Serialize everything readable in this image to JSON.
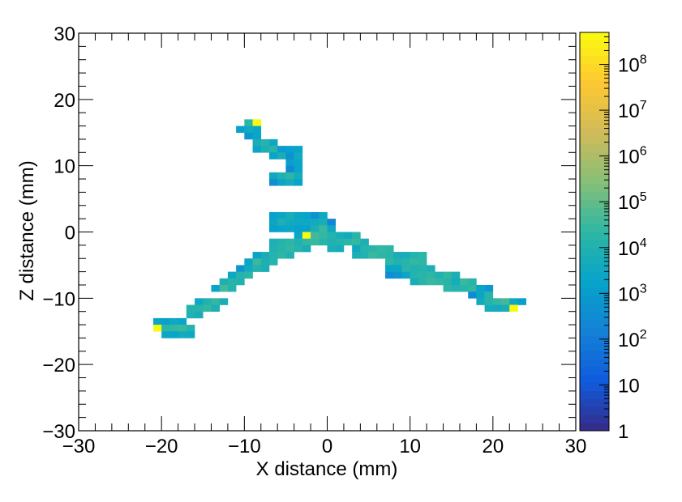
{
  "chart_data": {
    "type": "heatmap",
    "title": "",
    "xlabel": "X distance (mm)",
    "ylabel": "Z distance (mm)",
    "xlim": [
      -30,
      30
    ],
    "ylim": [
      -30,
      30
    ],
    "x_ticks": [
      -30,
      -20,
      -10,
      0,
      10,
      20,
      30
    ],
    "y_ticks": [
      -30,
      -20,
      -10,
      0,
      10,
      20,
      30
    ],
    "x_tick_labels": [
      "−30",
      "−20",
      "−10",
      "0",
      "10",
      "20",
      "30"
    ],
    "y_tick_labels": [
      "−30",
      "−20",
      "−10",
      "0",
      "10",
      "20",
      "30"
    ],
    "bin_width_mm": 1,
    "colorbar": {
      "scale": "log10",
      "range": [
        1,
        500000000
      ],
      "tick_values": [
        1,
        10,
        100,
        1000,
        10000,
        100000,
        1000000,
        10000000,
        100000000
      ],
      "tick_labels": [
        {
          "base": "1",
          "exp": ""
        },
        {
          "base": "10",
          "exp": ""
        },
        {
          "base": "10",
          "exp": "2"
        },
        {
          "base": "10",
          "exp": "3"
        },
        {
          "base": "10",
          "exp": "4"
        },
        {
          "base": "10",
          "exp": "5"
        },
        {
          "base": "10",
          "exp": "6"
        },
        {
          "base": "10",
          "exp": "7"
        },
        {
          "base": "10",
          "exp": "8"
        }
      ],
      "palette": [
        "#352a87",
        "#0f5cdd",
        "#1481d6",
        "#06a4ca",
        "#2eb7a4",
        "#87bf77",
        "#d1bb59",
        "#fec832",
        "#f9fb0e"
      ]
    },
    "cells": [
      [
        -10,
        16,
        4.3
      ],
      [
        -9,
        16,
        8.7
      ],
      [
        -11,
        15,
        3.2
      ],
      [
        -10,
        15,
        3.6
      ],
      [
        -9,
        15,
        3.4
      ],
      [
        -10,
        14,
        2.8
      ],
      [
        -9,
        14,
        3.3
      ],
      [
        -9,
        13,
        3.8
      ],
      [
        -8,
        13,
        4.1
      ],
      [
        -7,
        13,
        3.5
      ],
      [
        -9,
        12,
        3.4
      ],
      [
        -8,
        12,
        3.9
      ],
      [
        -7,
        12,
        4.2
      ],
      [
        -6,
        12,
        3.0
      ],
      [
        -5,
        12,
        3.2
      ],
      [
        -4,
        12,
        3.3
      ],
      [
        -7,
        11,
        3.3
      ],
      [
        -6,
        11,
        3.8
      ],
      [
        -5,
        11,
        2.7
      ],
      [
        -4,
        11,
        3.6
      ],
      [
        -5,
        10,
        3.1
      ],
      [
        -4,
        10,
        3.4
      ],
      [
        -5,
        9,
        2.4
      ],
      [
        -4,
        9,
        3.3
      ],
      [
        -7,
        8,
        3.5
      ],
      [
        -6,
        8,
        4.0
      ],
      [
        -5,
        8,
        4.3
      ],
      [
        -4,
        8,
        3.7
      ],
      [
        -7,
        7,
        2.6
      ],
      [
        -6,
        7,
        3.4
      ],
      [
        -5,
        7,
        3.7
      ],
      [
        -4,
        7,
        3.3
      ],
      [
        -7,
        2,
        3.2
      ],
      [
        -6,
        2,
        3.4
      ],
      [
        -5,
        2,
        3.8
      ],
      [
        -4,
        2,
        3.4
      ],
      [
        -3,
        2,
        3.3
      ],
      [
        -2,
        2,
        2.7
      ],
      [
        -1,
        2,
        3.5
      ],
      [
        -7,
        1,
        3.4
      ],
      [
        -6,
        1,
        3.9
      ],
      [
        -5,
        1,
        3.6
      ],
      [
        -4,
        1,
        3.5
      ],
      [
        -3,
        1,
        3.5
      ],
      [
        -2,
        1,
        3.6
      ],
      [
        -1,
        1,
        3.8
      ],
      [
        0,
        1,
        2.3
      ],
      [
        -7,
        0,
        3.2
      ],
      [
        -6,
        0,
        3.3
      ],
      [
        -5,
        0,
        3.4
      ],
      [
        -4,
        0,
        3.2
      ],
      [
        -3,
        0,
        3.2
      ],
      [
        -2,
        0,
        3.9
      ],
      [
        -1,
        0,
        4.5
      ],
      [
        0,
        0,
        3.5
      ],
      [
        -4,
        -1,
        3.4
      ],
      [
        -3,
        -1,
        8.9
      ],
      [
        -2,
        -1,
        4.6
      ],
      [
        -1,
        -1,
        4.4
      ],
      [
        0,
        -1,
        4.1
      ],
      [
        1,
        -1,
        3.8
      ],
      [
        2,
        -1,
        3.6
      ],
      [
        3,
        -1,
        4.2
      ],
      [
        -7,
        -2,
        3.9
      ],
      [
        -6,
        -2,
        4.1
      ],
      [
        -5,
        -2,
        4.3
      ],
      [
        -4,
        -2,
        4.0
      ],
      [
        -3,
        -2,
        4.4
      ],
      [
        -2,
        -2,
        4.5
      ],
      [
        -1,
        -2,
        4.2
      ],
      [
        0,
        -2,
        4.0
      ],
      [
        1,
        -2,
        4.1
      ],
      [
        2,
        -2,
        4.3
      ],
      [
        3,
        -2,
        4.4
      ],
      [
        4,
        -2,
        3.9
      ],
      [
        -7,
        -3,
        4.0
      ],
      [
        -6,
        -3,
        4.2
      ],
      [
        -5,
        -3,
        4.4
      ],
      [
        -4,
        -3,
        4.1
      ],
      [
        -3,
        -3,
        3.8
      ],
      [
        0,
        -3,
        3.9
      ],
      [
        1,
        -3,
        3.7
      ],
      [
        3,
        -3,
        3.5
      ],
      [
        4,
        -3,
        4.1
      ],
      [
        5,
        -3,
        4.2
      ],
      [
        6,
        -3,
        4.4
      ],
      [
        7,
        -3,
        4.3
      ],
      [
        -9,
        -4,
        3.3
      ],
      [
        -8,
        -4,
        3.8
      ],
      [
        -7,
        -4,
        4.1
      ],
      [
        -6,
        -4,
        4.3
      ],
      [
        -5,
        -4,
        4.0
      ],
      [
        3,
        -4,
        3.9
      ],
      [
        4,
        -4,
        4.0
      ],
      [
        5,
        -4,
        4.5
      ],
      [
        6,
        -4,
        4.3
      ],
      [
        7,
        -4,
        4.2
      ],
      [
        8,
        -4,
        3.8
      ],
      [
        9,
        -4,
        3.7
      ],
      [
        10,
        -4,
        4.1
      ],
      [
        11,
        -4,
        4.3
      ],
      [
        -10,
        -5,
        3.4
      ],
      [
        -9,
        -5,
        4.5
      ],
      [
        -8,
        -5,
        3.9
      ],
      [
        -7,
        -5,
        4.1
      ],
      [
        7,
        -5,
        4.3
      ],
      [
        8,
        -5,
        4.0
      ],
      [
        9,
        -5,
        4.2
      ],
      [
        10,
        -5,
        4.4
      ],
      [
        11,
        -5,
        4.3
      ],
      [
        -11,
        -6,
        2.8
      ],
      [
        -10,
        -6,
        3.6
      ],
      [
        -9,
        -6,
        4.1
      ],
      [
        -8,
        -6,
        3.9
      ],
      [
        7,
        -6,
        3.3
      ],
      [
        8,
        -6,
        3.4
      ],
      [
        9,
        -6,
        4.2
      ],
      [
        10,
        -6,
        4.0
      ],
      [
        11,
        -6,
        4.1
      ],
      [
        12,
        -6,
        3.9
      ],
      [
        -12,
        -7,
        3.5
      ],
      [
        -11,
        -7,
        4.1
      ],
      [
        -10,
        -7,
        4.3
      ],
      [
        7,
        -7,
        2.6
      ],
      [
        8,
        -7,
        2.8
      ],
      [
        9,
        -7,
        3.4
      ],
      [
        10,
        -7,
        4.1
      ],
      [
        11,
        -7,
        4.2
      ],
      [
        12,
        -7,
        4.3
      ],
      [
        13,
        -7,
        4.0
      ],
      [
        14,
        -7,
        4.4
      ],
      [
        15,
        -7,
        3.9
      ],
      [
        -13,
        -8,
        3.9
      ],
      [
        -12,
        -8,
        4.2
      ],
      [
        -11,
        -8,
        4.0
      ],
      [
        10,
        -8,
        3.8
      ],
      [
        11,
        -8,
        4.2
      ],
      [
        12,
        -8,
        4.5
      ],
      [
        13,
        -8,
        4.4
      ],
      [
        14,
        -8,
        4.2
      ],
      [
        15,
        -8,
        3.7
      ],
      [
        16,
        -8,
        4.5
      ],
      [
        17,
        -8,
        4.2
      ],
      [
        -14,
        -9,
        3.3
      ],
      [
        -13,
        -9,
        4.6
      ],
      [
        -12,
        -9,
        4.1
      ],
      [
        14,
        -9,
        4.3
      ],
      [
        15,
        -9,
        4.1
      ],
      [
        16,
        -9,
        4.2
      ],
      [
        17,
        -9,
        4.4
      ],
      [
        18,
        -9,
        3.3
      ],
      [
        19,
        -9,
        2.9
      ],
      [
        17,
        -10,
        2.5
      ],
      [
        18,
        -10,
        3.4
      ],
      [
        19,
        -10,
        4.2
      ],
      [
        -16,
        -11,
        3.5
      ],
      [
        -15,
        -11,
        4.0
      ],
      [
        -14,
        -11,
        4.4
      ],
      [
        -13,
        -11,
        3.8
      ],
      [
        18,
        -11,
        3.6
      ],
      [
        19,
        -11,
        4.2
      ],
      [
        20,
        -11,
        4.4
      ],
      [
        21,
        -11,
        4.6
      ],
      [
        22,
        -11,
        3.5
      ],
      [
        23,
        -11,
        3.1
      ],
      [
        -17,
        -12,
        4.1
      ],
      [
        -16,
        -12,
        4.2
      ],
      [
        -15,
        -12,
        4.4
      ],
      [
        -14,
        -12,
        3.9
      ],
      [
        19,
        -12,
        3.7
      ],
      [
        20,
        -12,
        3.6
      ],
      [
        21,
        -12,
        3.8
      ],
      [
        22,
        -12,
        8.9
      ],
      [
        -17,
        -13,
        4.0
      ],
      [
        -16,
        -13,
        3.8
      ],
      [
        -21,
        -14,
        3.4
      ],
      [
        -20,
        -14,
        3.2
      ],
      [
        -19,
        -14,
        3.5
      ],
      [
        -18,
        -14,
        3.3
      ],
      [
        -21,
        -15,
        8.8
      ],
      [
        -20,
        -15,
        4.3
      ],
      [
        -19,
        -15,
        4.4
      ],
      [
        -18,
        -15,
        4.5
      ],
      [
        -17,
        -15,
        4.1
      ],
      [
        -20,
        -16,
        3.4
      ],
      [
        -19,
        -16,
        3.3
      ],
      [
        -18,
        -16,
        3.6
      ],
      [
        -17,
        -16,
        3.5
      ]
    ]
  }
}
